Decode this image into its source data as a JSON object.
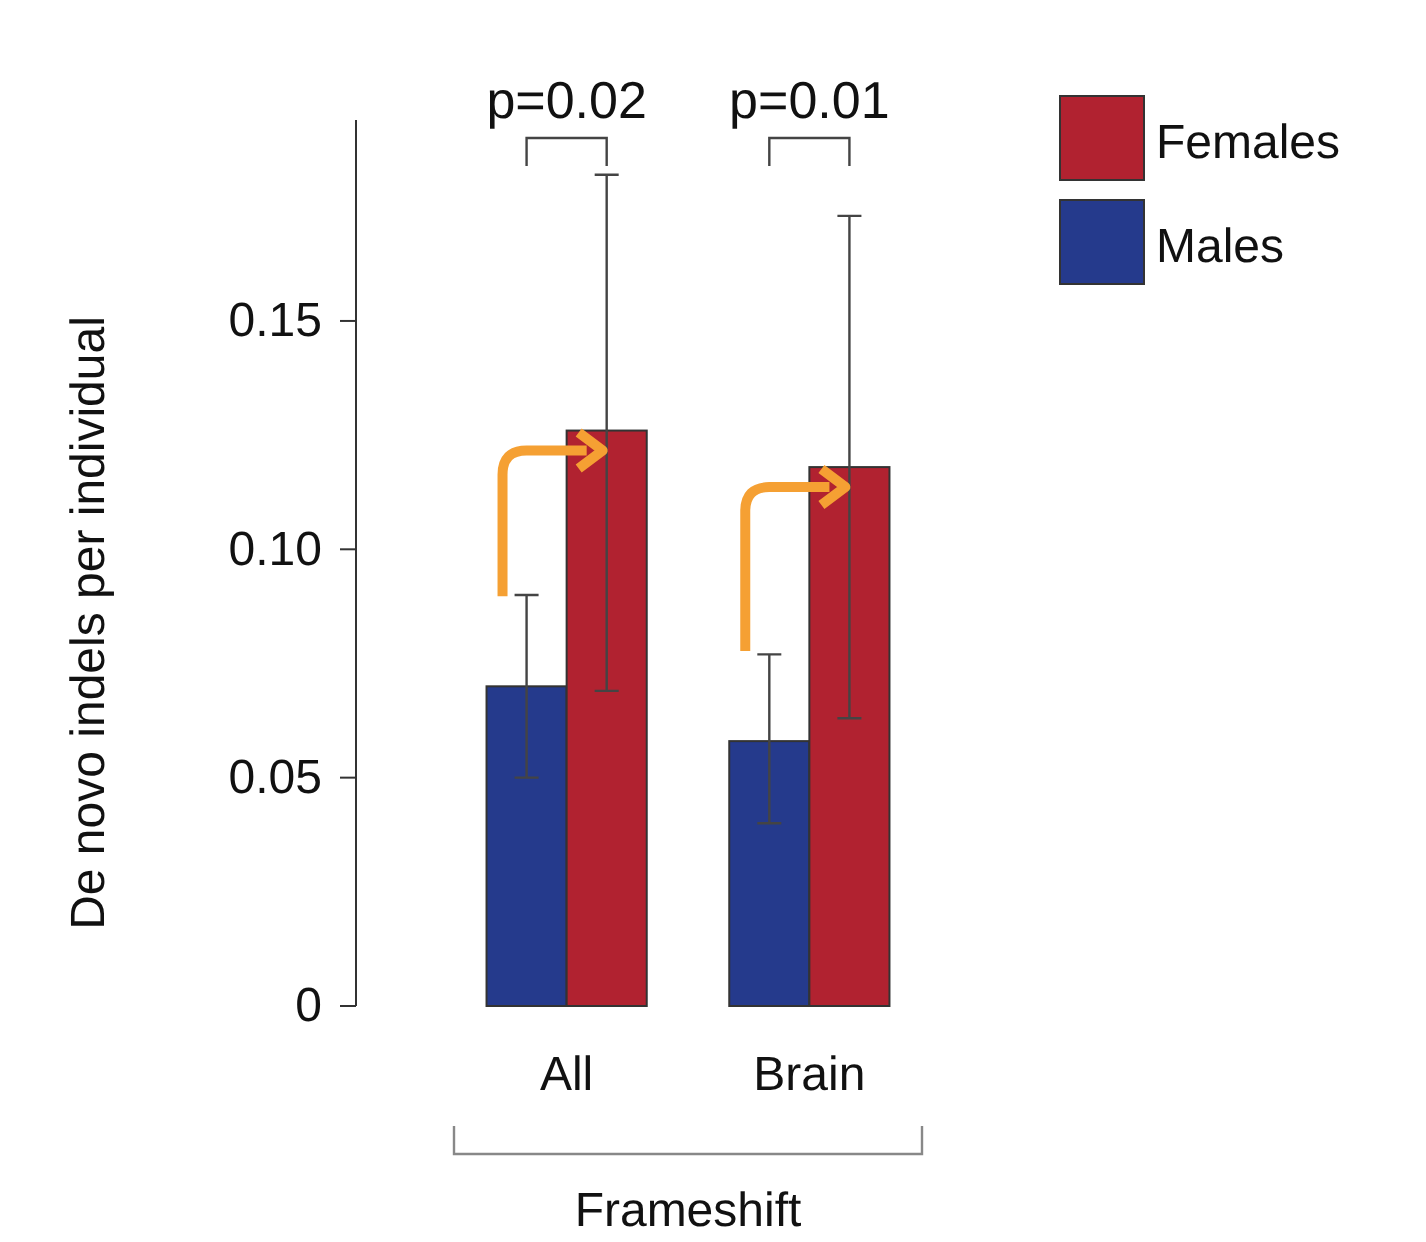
{
  "chart_data": {
    "type": "bar",
    "ylabel": "De novo indels per individual",
    "xlabel": "Frameshift",
    "categories": [
      "All",
      "Brain"
    ],
    "series": [
      {
        "name": "Males",
        "color": "#253a8c",
        "values": [
          0.07,
          0.058
        ],
        "errors": [
          [
            0.05,
            0.09
          ],
          [
            0.04,
            0.077
          ]
        ]
      },
      {
        "name": "Females",
        "color": "#b12230",
        "values": [
          0.126,
          0.118
        ],
        "errors": [
          [
            0.069,
            0.182
          ],
          [
            0.063,
            0.173
          ]
        ]
      }
    ],
    "ylim": [
      0,
      0.194
    ],
    "yticks": [
      0,
      0.05,
      {
        "value": 0.1,
        "label": "0.10"
      },
      0.15
    ],
    "annotations": [
      "p=0.02",
      "p=0.01"
    ],
    "legend": "top right",
    "grid": false
  }
}
